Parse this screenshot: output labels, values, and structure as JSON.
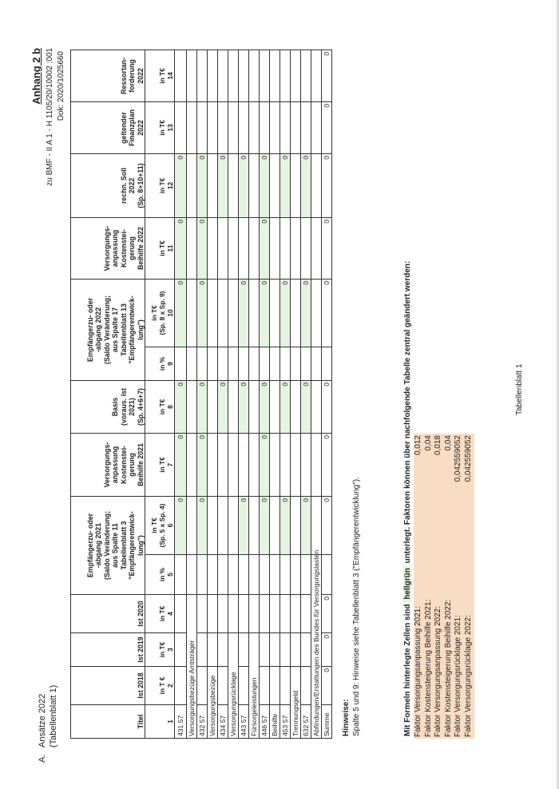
{
  "header": {
    "section_letter": "A.",
    "title": "Ansätze 2022",
    "subtitle": "(Tabellenblatt 1)",
    "annex": "Anhang 2 b",
    "reference": "zu BMF - II A 1 - H 1105/20/10002 :001",
    "document": "Dok: 2020/1025660"
  },
  "colors": {
    "highlight_green": "#e4f4e0",
    "factor_peach": "#f8dcc3",
    "border": "#333333"
  },
  "table": {
    "headers": [
      {
        "label": "Titel",
        "span": 1
      },
      {
        "label": "Ist 2018",
        "span": 1
      },
      {
        "label": "Ist 2019",
        "span": 1
      },
      {
        "label": "Ist 2020",
        "span": 1
      },
      {
        "label": "Empfängerzu- oder\n-abgang 2021\n(Saldo Veränderung;\naus Spalte 11\nTabellenblatt 3\n\"Empfängerentwick-\nlung\")",
        "span": 2
      },
      {
        "label": "Versorgungs-\nanpassung\nKostenstei-\ngerung\nBeihilfe 2021",
        "span": 1
      },
      {
        "label": "Basis\n(voraus. Ist\n2021)\n(Sp. 4+6+7)",
        "span": 1
      },
      {
        "label": "Empfängerzu- oder\n-abgang 2022\n(Saldo Veränderung;\naus Spalte 17\nTabellenblatt 13\n\"Empfängerentwick-\nlung\")",
        "span": 2
      },
      {
        "label": "Versorgungs-\nanpassung\nKostenstei-\ngerung\nBeihilfe 2022",
        "span": 1
      },
      {
        "label": "rechn. Soll\n2022\n(Sp. 8+10+11)",
        "span": 1
      },
      {
        "label": "geltender\nFinanzplan\n2022",
        "span": 1
      },
      {
        "label": "Ressortan-\nforderung\n2022",
        "span": 1
      }
    ],
    "units": [
      {
        "unit": "",
        "number": "1"
      },
      {
        "unit": "in T €",
        "number": "2"
      },
      {
        "unit": "in T€",
        "number": "3"
      },
      {
        "unit": "in T€",
        "number": "4"
      },
      {
        "unit": "in %",
        "number": "5"
      },
      {
        "unit": "in T€\n(Sp. 5 x Sp. 4)",
        "number": "6"
      },
      {
        "unit": "in T€",
        "number": "7"
      },
      {
        "unit": "in T€",
        "number": "8"
      },
      {
        "unit": "in %",
        "number": "9"
      },
      {
        "unit": "in T€\n(Sp. 8 x Sp. 9)",
        "number": "10"
      },
      {
        "unit": "in T€",
        "number": "11"
      },
      {
        "unit": "in T€",
        "number": "12"
      },
      {
        "unit": "in T€",
        "number": "13"
      },
      {
        "unit": "in T€",
        "number": "14"
      }
    ],
    "rows": [
      {
        "titel": "431 57",
        "values": [
          "",
          "",
          "",
          "",
          "",
          "0",
          "0",
          "0",
          "",
          "0",
          "0",
          "0",
          "",
          ""
        ],
        "highlighted": [
          6,
          7,
          8,
          10,
          11,
          12
        ]
      },
      {
        "label": "Versorgungsbezüge Amtsträger",
        "span": 4
      },
      {
        "titel": "432 57",
        "values": [
          "",
          "",
          "",
          "",
          "",
          "0",
          "0",
          "0",
          "",
          "0",
          "0",
          "0",
          "",
          ""
        ],
        "highlighted": [
          6,
          7,
          8,
          10,
          11,
          12
        ]
      },
      {
        "label": "Versorgungsbezüge",
        "span": 2
      },
      {
        "titel": "434 57",
        "values": [
          "",
          "",
          "",
          "",
          "",
          "",
          "",
          "0",
          "",
          "",
          "",
          "0",
          "",
          ""
        ],
        "highlighted": [
          8,
          12
        ]
      },
      {
        "label": "Versorgungsrücklage",
        "span": 3
      },
      {
        "titel": "443 57",
        "values": [
          "",
          "",
          "",
          "",
          "",
          "0",
          "",
          "0",
          "",
          "0",
          "",
          "0",
          "",
          ""
        ],
        "highlighted": [
          6,
          8,
          10,
          12
        ]
      },
      {
        "label": "Fürsorgeleistungen",
        "span": 3
      },
      {
        "titel": "446 57",
        "values": [
          "",
          "",
          "",
          "",
          "",
          "0",
          "0",
          "0",
          "",
          "0",
          "0",
          "0",
          "",
          ""
        ],
        "highlighted": [
          6,
          7,
          8,
          10,
          11,
          12
        ]
      },
      {
        "label": "Beihilfe",
        "span": 1
      },
      {
        "titel": "453 57",
        "values": [
          "",
          "",
          "",
          "",
          "",
          "0",
          "",
          "0",
          "",
          "0",
          "",
          "0",
          "",
          ""
        ],
        "highlighted": [
          6,
          8,
          10,
          12
        ]
      },
      {
        "label": "Trennungsgeld",
        "span": 2
      },
      {
        "titel": "632 57",
        "values": [
          "",
          "",
          "",
          "",
          "",
          "0",
          "",
          "0",
          "",
          "0",
          "",
          "0",
          "",
          ""
        ],
        "highlighted": [
          6,
          8,
          10,
          12
        ]
      },
      {
        "label": "Abfindungen/Erstattungen des Bundes für Versorgungslasten",
        "span": 5
      },
      {
        "titel": "Summe",
        "values": [
          "",
          "0",
          "0",
          "0",
          "",
          "0",
          "0",
          "0",
          "",
          "0",
          "0",
          "0",
          "0",
          "0"
        ],
        "highlighted": []
      }
    ]
  },
  "notes": {
    "title": "Hinweise:",
    "text": "Spalte 5 und 9: Hinweise siehe Tabellenblatt 3 (\"Empfängerentwicklung\")."
  },
  "formula_note": {
    "prefix": "Mit Formeln hinterlegte Zellen sind",
    "green_word": "hellgrün",
    "suffix": "unterlegt. Faktoren können über nachfolgende Tabelle zentral geändert werden:"
  },
  "factors": [
    {
      "label": "Faktor Versorgungsanpassung 2021:",
      "value": "0,012"
    },
    {
      "label": "Faktor Kostensteigerung Beihilfe 2021:",
      "value": "0,04"
    },
    {
      "label": "Faktor Versorgungsanpassung 2022:",
      "value": "0,018"
    },
    {
      "label": "Faktor Kostensteigerung Beihilfe 2022:",
      "value": "0,04"
    },
    {
      "label": "Faktor Versorgungsrücklage 2021:",
      "value": "0,042559052"
    },
    {
      "label": "Faktor Versorgungsrücklage 2022:",
      "value": "0,042559052"
    }
  ],
  "footer": {
    "sheet_label": "Tabellenblatt 1"
  }
}
